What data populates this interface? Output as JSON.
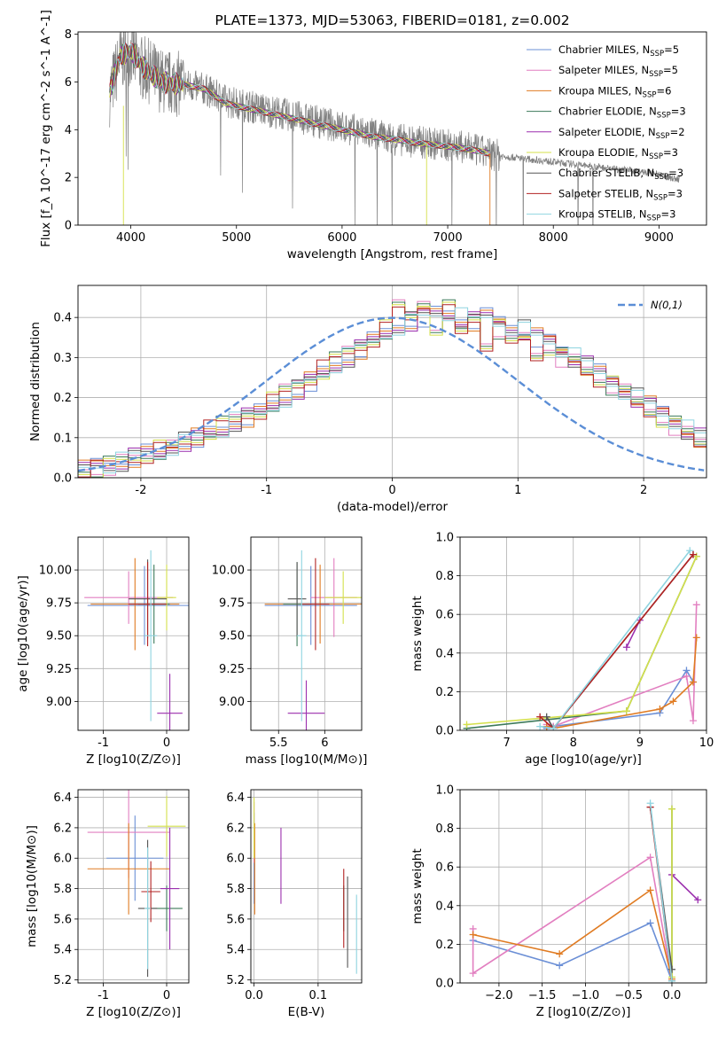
{
  "chart_data": [
    {
      "id": "spectrum",
      "type": "line",
      "title": "PLATE=1373, MJD=53063, FIBERID=0181, z=0.002",
      "xlabel": "wavelength [Angstrom, rest frame]",
      "ylabel": "Flux [f_λ 10^-17 erg cm^-2 s^-1 A^-1]",
      "xlim": [
        3500,
        9450
      ],
      "ylim": [
        0,
        8.1
      ],
      "xticks": [
        4000,
        5000,
        6000,
        7000,
        8000,
        9000
      ],
      "yticks": [
        0,
        2,
        4,
        6,
        8
      ],
      "grid": false,
      "legend_position": "top-right",
      "data_color": "#808080",
      "data_series": {
        "x": [
          3800,
          3900,
          4000,
          4100,
          4200,
          4300,
          4500,
          4700,
          4900,
          5100,
          5300,
          5500,
          5700,
          5900,
          6100,
          6300,
          6500,
          6700,
          6900,
          7100,
          7300,
          7400,
          7500,
          7700,
          7900,
          8100,
          8300,
          8500,
          8700,
          8900,
          9100,
          9200
        ],
        "y": [
          5.5,
          7.0,
          7.2,
          6.6,
          6.4,
          6.0,
          5.9,
          5.7,
          5.2,
          5.0,
          4.8,
          4.6,
          4.4,
          4.2,
          4.0,
          3.8,
          3.6,
          3.5,
          3.4,
          3.3,
          3.1,
          3.0,
          2.9,
          2.8,
          2.7,
          2.6,
          2.5,
          2.4,
          2.3,
          2.2,
          2.0,
          1.9
        ]
      },
      "model_x": [
        3800,
        3900,
        4000,
        4100,
        4200,
        4300,
        4500,
        4700,
        4900,
        5100,
        5300,
        5500,
        5700,
        5900,
        6100,
        6300,
        6500,
        6700,
        6900,
        7100,
        7300,
        7400
      ],
      "model_y": [
        5.6,
        7.1,
        7.3,
        6.7,
        6.3,
        6.0,
        5.9,
        5.7,
        5.1,
        4.9,
        4.7,
        4.5,
        4.3,
        4.1,
        3.9,
        3.7,
        3.6,
        3.45,
        3.35,
        3.25,
        3.1,
        3.0
      ],
      "series": [
        {
          "name": "Chabrier MILES, N",
          "sub": "SSP",
          "suffix": "=5",
          "color": "#6b8fd6"
        },
        {
          "name": "Salpeter MILES, N",
          "sub": "SSP",
          "suffix": "=5",
          "color": "#e27fc0"
        },
        {
          "name": "Kroupa MILES, N",
          "sub": "SSP",
          "suffix": "=6",
          "color": "#e07b22"
        },
        {
          "name": "Chabrier ELODIE, N",
          "sub": "SSP",
          "suffix": "=3",
          "color": "#3d7a5a"
        },
        {
          "name": "Salpeter ELODIE, N",
          "sub": "SSP",
          "suffix": "=2",
          "color": "#9b2fae"
        },
        {
          "name": "Kroupa ELODIE, N",
          "sub": "SSP",
          "suffix": "=3",
          "color": "#d4e04a"
        },
        {
          "name": "Chabrier STELIB, N",
          "sub": "SSP",
          "suffix": "=3",
          "color": "#555555"
        },
        {
          "name": "Salpeter STELIB, N",
          "sub": "SSP",
          "suffix": "=3",
          "color": "#b22222"
        },
        {
          "name": "Kroupa STELIB, N",
          "sub": "SSP",
          "suffix": "=3",
          "color": "#8fd4e0"
        }
      ]
    },
    {
      "id": "residuals",
      "type": "histogram",
      "xlabel": "(data-model)/error",
      "ylabel": "Normed distribution",
      "xlim": [
        -2.5,
        2.5
      ],
      "ylim": [
        0,
        0.48
      ],
      "xticks": [
        -2,
        -1,
        0,
        1,
        2
      ],
      "yticks": [
        0.0,
        0.1,
        0.2,
        0.3,
        0.4
      ],
      "grid": true,
      "legend_position": "top-right",
      "legend": "N(0,1)",
      "normal_color": "#5b8ed6",
      "bins_start": -2.5,
      "bin_width": 0.1,
      "hist_a": [
        0.02,
        0.03,
        0.03,
        0.04,
        0.05,
        0.06,
        0.06,
        0.08,
        0.09,
        0.1,
        0.11,
        0.12,
        0.14,
        0.15,
        0.16,
        0.18,
        0.2,
        0.22,
        0.24,
        0.26,
        0.28,
        0.3,
        0.32,
        0.34,
        0.36,
        0.38,
        0.39,
        0.4,
        0.41,
        0.41,
        0.4,
        0.39,
        0.4,
        0.39,
        0.38,
        0.37,
        0.35,
        0.34,
        0.32,
        0.3,
        0.28,
        0.26,
        0.24,
        0.22,
        0.2,
        0.18,
        0.16,
        0.14,
        0.12,
        0.1
      ],
      "hist_b": [
        0.02,
        0.02,
        0.03,
        0.04,
        0.05,
        0.06,
        0.07,
        0.07,
        0.09,
        0.1,
        0.12,
        0.13,
        0.14,
        0.16,
        0.17,
        0.19,
        0.21,
        0.23,
        0.25,
        0.27,
        0.29,
        0.31,
        0.33,
        0.35,
        0.37,
        0.42,
        0.4,
        0.44,
        0.38,
        0.42,
        0.36,
        0.4,
        0.34,
        0.37,
        0.33,
        0.35,
        0.31,
        0.33,
        0.3,
        0.29,
        0.27,
        0.25,
        0.23,
        0.21,
        0.19,
        0.17,
        0.15,
        0.13,
        0.11,
        0.09
      ]
    },
    {
      "id": "age_vs_Z",
      "type": "errorbar",
      "xlabel": "Z [log10(Z/Z⊙)]",
      "ylabel": "age [log10(age/yr)]",
      "xlim": [
        -1.4,
        0.35
      ],
      "ylim": [
        8.78,
        10.25
      ],
      "xticks": [
        -1,
        0
      ],
      "yticks": [
        9.0,
        9.25,
        9.5,
        9.75,
        10.0
      ],
      "grid": true,
      "points": [
        {
          "x": -0.35,
          "y": 9.73,
          "xerr": 0.9,
          "yerr": 0.3,
          "color": "#6b8fd6"
        },
        {
          "x": -0.6,
          "y": 9.79,
          "xerr": 0.7,
          "yerr": 0.2,
          "color": "#e27fc0"
        },
        {
          "x": -0.5,
          "y": 9.74,
          "xerr": 0.7,
          "yerr": 0.35,
          "color": "#e07b22"
        },
        {
          "x": -0.2,
          "y": 9.74,
          "xerr": 0.25,
          "yerr": 0.3,
          "color": "#3d7a5a"
        },
        {
          "x": 0.05,
          "y": 8.91,
          "xerr": 0.2,
          "yerr": 0.3,
          "color": "#9b2fae"
        },
        {
          "x": 0.0,
          "y": 9.79,
          "xerr": 0.15,
          "yerr": 0.25,
          "color": "#d4e04a"
        },
        {
          "x": -0.3,
          "y": 9.78,
          "xerr": 0.3,
          "yerr": 0.3,
          "color": "#555555"
        },
        {
          "x": -0.3,
          "y": 9.74,
          "xerr": 0.3,
          "yerr": 0.32,
          "color": "#b22222"
        },
        {
          "x": -0.25,
          "y": 9.5,
          "xerr": 0.1,
          "yerr": 0.65,
          "color": "#8fd4e0"
        }
      ]
    },
    {
      "id": "age_vs_mass",
      "type": "errorbar",
      "xlabel": "mass [log10(M/M⊙)]",
      "ylabel": "",
      "xlim": [
        5.2,
        6.4
      ],
      "ylim": [
        8.78,
        10.25
      ],
      "xticks": [
        5.5,
        6.0
      ],
      "yticks": [
        9.0,
        9.25,
        9.5,
        9.75,
        10.0
      ],
      "grid": true,
      "points": [
        {
          "x": 5.85,
          "y": 9.73,
          "xerr": 0.5,
          "yerr": 0.3,
          "color": "#6b8fd6"
        },
        {
          "x": 6.1,
          "y": 9.79,
          "xerr": 0.25,
          "yerr": 0.3,
          "color": "#e27fc0"
        },
        {
          "x": 5.95,
          "y": 9.74,
          "xerr": 0.6,
          "yerr": 0.3,
          "color": "#e07b22"
        },
        {
          "x": 5.7,
          "y": 9.74,
          "xerr": 0.15,
          "yerr": 0.32,
          "color": "#3d7a5a"
        },
        {
          "x": 5.8,
          "y": 8.91,
          "xerr": 0.2,
          "yerr": 0.25,
          "color": "#9b2fae"
        },
        {
          "x": 6.2,
          "y": 9.79,
          "xerr": 0.2,
          "yerr": 0.2,
          "color": "#d4e04a"
        },
        {
          "x": 5.7,
          "y": 9.78,
          "xerr": 0.1,
          "yerr": 0.28,
          "color": "#555555"
        },
        {
          "x": 5.9,
          "y": 9.74,
          "xerr": 0.15,
          "yerr": 0.35,
          "color": "#b22222"
        },
        {
          "x": 5.75,
          "y": 9.5,
          "xerr": 0.05,
          "yerr": 0.65,
          "color": "#8fd4e0"
        }
      ]
    },
    {
      "id": "weight_vs_age",
      "type": "line",
      "xlabel": "age [log10(age/yr)]",
      "ylabel": "mass weight",
      "xlim": [
        6.3,
        10.0
      ],
      "ylim": [
        0,
        1.0
      ],
      "xticks": [
        7,
        8,
        9,
        10
      ],
      "yticks": [
        0.0,
        0.2,
        0.4,
        0.6,
        0.8,
        1.0
      ],
      "grid": true,
      "series": [
        {
          "color": "#6b8fd6",
          "x": [
            7.6,
            7.7,
            9.3,
            9.7,
            9.8
          ],
          "y": [
            0.01,
            0.02,
            0.09,
            0.31,
            0.25
          ]
        },
        {
          "color": "#e27fc0",
          "x": [
            7.6,
            7.7,
            9.7,
            9.8,
            9.85
          ],
          "y": [
            0.03,
            0.02,
            0.28,
            0.05,
            0.65
          ]
        },
        {
          "color": "#e07b22",
          "x": [
            7.6,
            7.7,
            9.3,
            9.5,
            9.8,
            9.85
          ],
          "y": [
            0.02,
            0.01,
            0.11,
            0.15,
            0.25,
            0.48
          ]
        },
        {
          "color": "#3d7a5a",
          "x": [
            6.4,
            8.8,
            9.85
          ],
          "y": [
            0.01,
            0.1,
            0.9
          ]
        },
        {
          "color": "#9b2fae",
          "x": [
            8.8,
            9.0
          ],
          "y": [
            0.43,
            0.57
          ]
        },
        {
          "color": "#d4e04a",
          "x": [
            6.4,
            8.8,
            9.85
          ],
          "y": [
            0.03,
            0.1,
            0.9
          ]
        },
        {
          "color": "#555555",
          "x": [
            7.6,
            7.7,
            9.8
          ],
          "y": [
            0.07,
            0.01,
            0.91
          ]
        },
        {
          "color": "#b22222",
          "x": [
            7.5,
            7.7,
            9.8
          ],
          "y": [
            0.07,
            0.01,
            0.91
          ]
        },
        {
          "color": "#8fd4e0",
          "x": [
            7.5,
            7.7,
            9.75
          ],
          "y": [
            0.02,
            0.01,
            0.93
          ]
        }
      ]
    },
    {
      "id": "mass_vs_Z",
      "type": "errorbar",
      "xlabel": "Z [log10(Z/Z⊙)]",
      "ylabel": "mass [log10(M/M⊙)]",
      "xlim": [
        -1.4,
        0.35
      ],
      "ylim": [
        5.18,
        6.45
      ],
      "xticks": [
        -1,
        0
      ],
      "yticks": [
        5.2,
        5.4,
        5.6,
        5.8,
        6.0,
        6.2,
        6.4
      ],
      "grid": true,
      "points": [
        {
          "x": -0.5,
          "y": 6.0,
          "xerr": 0.45,
          "yerr": 0.28,
          "color": "#6b8fd6"
        },
        {
          "x": -0.6,
          "y": 6.17,
          "xerr": 0.65,
          "yerr": 0.3,
          "color": "#e27fc0"
        },
        {
          "x": -0.6,
          "y": 5.93,
          "xerr": 0.65,
          "yerr": 0.3,
          "color": "#e07b22"
        },
        {
          "x": 0.0,
          "y": 5.67,
          "xerr": 0.25,
          "yerr": 0.15,
          "color": "#3d7a5a"
        },
        {
          "x": 0.05,
          "y": 5.8,
          "xerr": 0.15,
          "yerr": 0.4,
          "color": "#9b2fae"
        },
        {
          "x": 0.0,
          "y": 6.21,
          "xerr": 0.3,
          "yerr": 0.2,
          "color": "#d4e04a"
        },
        {
          "x": -0.3,
          "y": 5.67,
          "xerr": 0.15,
          "yerr": 0.45,
          "color": "#555555"
        },
        {
          "x": -0.25,
          "y": 5.78,
          "xerr": 0.15,
          "yerr": 0.2,
          "color": "#b22222"
        },
        {
          "x": -0.3,
          "y": 5.67,
          "xerr": 0.05,
          "yerr": 0.4,
          "color": "#8fd4e0"
        }
      ]
    },
    {
      "id": "mass_vs_ebv",
      "type": "errorbar",
      "xlabel": "E(B-V)",
      "ylabel": "",
      "xlim": [
        -0.005,
        0.168
      ],
      "ylim": [
        5.18,
        6.45
      ],
      "xticks": [
        0.0,
        0.1
      ],
      "yticks": [
        5.2,
        5.4,
        5.6,
        5.8,
        6.0,
        6.2,
        6.4
      ],
      "grid": true,
      "points": [
        {
          "x": 0.0,
          "y": 6.0,
          "xerr": 0,
          "yerr": 0.3,
          "color": "#6b8fd6"
        },
        {
          "x": 0.0,
          "y": 6.17,
          "xerr": 0,
          "yerr": 0.2,
          "color": "#e27fc0"
        },
        {
          "x": 0.001,
          "y": 5.93,
          "xerr": 0,
          "yerr": 0.3,
          "color": "#e07b22"
        },
        {
          "x": 0.14,
          "y": 5.67,
          "xerr": 0,
          "yerr": 0.15,
          "color": "#3d7a5a"
        },
        {
          "x": 0.042,
          "y": 5.95,
          "xerr": 0,
          "yerr": 0.25,
          "color": "#9b2fae"
        },
        {
          "x": 0.0,
          "y": 6.2,
          "xerr": 0,
          "yerr": 0.2,
          "color": "#d4e04a"
        },
        {
          "x": 0.146,
          "y": 5.58,
          "xerr": 0,
          "yerr": 0.3,
          "color": "#555555"
        },
        {
          "x": 0.14,
          "y": 5.67,
          "xerr": 0,
          "yerr": 0.26,
          "color": "#b22222"
        },
        {
          "x": 0.16,
          "y": 5.5,
          "xerr": 0,
          "yerr": 0.26,
          "color": "#8fd4e0"
        }
      ]
    },
    {
      "id": "weight_vs_Z",
      "type": "line",
      "xlabel": "Z [log10(Z/Z⊙)]",
      "ylabel": "mass weight",
      "xlim": [
        -2.45,
        0.4
      ],
      "ylim": [
        0,
        1.0
      ],
      "xticks": [
        -2.0,
        -1.5,
        -1.0,
        -0.5,
        0.0
      ],
      "yticks": [
        0.0,
        0.2,
        0.4,
        0.6,
        0.8,
        1.0
      ],
      "grid": true,
      "series": [
        {
          "color": "#6b8fd6",
          "x": [
            -2.3,
            -1.3,
            -0.25,
            0.0
          ],
          "y": [
            0.22,
            0.09,
            0.31,
            0.01
          ]
        },
        {
          "color": "#e27fc0",
          "x": [
            -2.3,
            -2.3,
            -0.25,
            0.0
          ],
          "y": [
            0.28,
            0.05,
            0.65,
            0.01
          ]
        },
        {
          "color": "#e07b22",
          "x": [
            -2.3,
            -1.3,
            -0.25,
            0.0
          ],
          "y": [
            0.25,
            0.15,
            0.48,
            0.02
          ]
        },
        {
          "color": "#3d7a5a",
          "x": [
            0.0,
            0.0
          ],
          "y": [
            0.9,
            0.01
          ]
        },
        {
          "color": "#9b2fae",
          "x": [
            0.0,
            0.3
          ],
          "y": [
            0.56,
            0.43
          ]
        },
        {
          "color": "#d4e04a",
          "x": [
            0.0,
            0.0
          ],
          "y": [
            0.9,
            0.03
          ]
        },
        {
          "color": "#555555",
          "x": [
            -0.25,
            0.0
          ],
          "y": [
            0.91,
            0.07
          ]
        },
        {
          "color": "#b22222",
          "x": [
            -0.25,
            0.0
          ],
          "y": [
            0.91,
            0.01
          ]
        },
        {
          "color": "#8fd4e0",
          "x": [
            -0.25,
            0.0
          ],
          "y": [
            0.93,
            0.01
          ]
        }
      ]
    }
  ]
}
